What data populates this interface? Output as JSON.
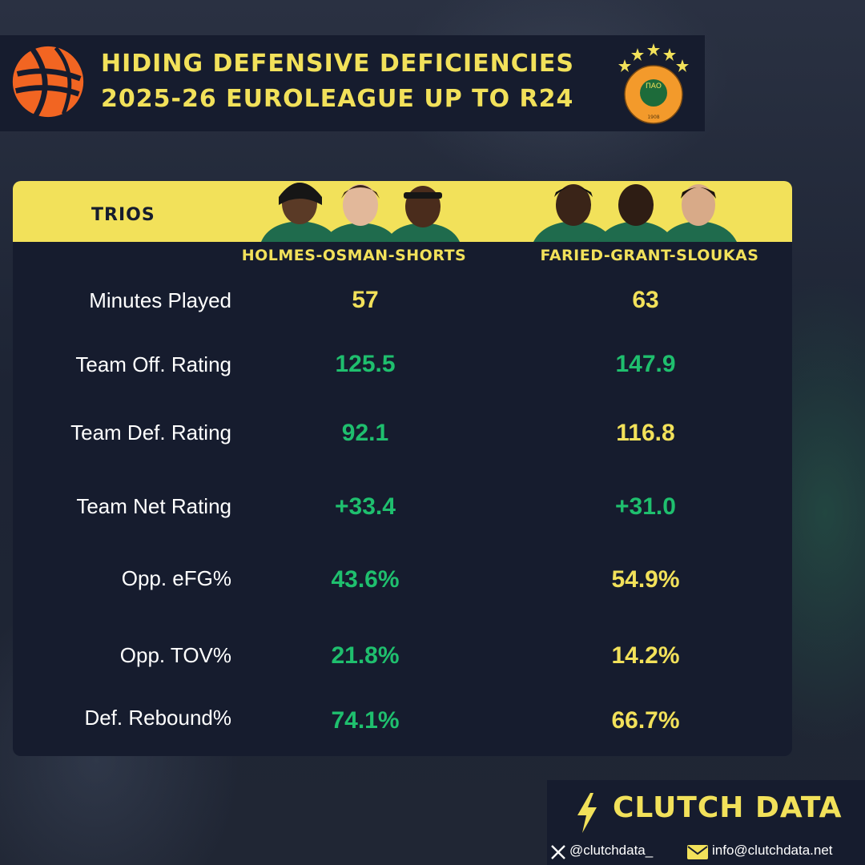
{
  "header": {
    "title_line1": "HIDING DEFENSIVE DEFICIENCIES",
    "title_line2": "2025-26 EUROLEAGUE UP TO R24",
    "club_logo_year": "1908",
    "club_logo_letters": "ΠΑΟ"
  },
  "table": {
    "section_label": "TRIOS",
    "trios": [
      {
        "name": "HOLMES-OSMAN-SHORTS"
      },
      {
        "name": "FARIED-GRANT-SLOUKAS"
      }
    ],
    "rows": [
      {
        "label": "Minutes Played",
        "v1": "57",
        "v2": "63",
        "c1": "yellow",
        "c2": "yellow"
      },
      {
        "label": "Team Off. Rating",
        "v1": "125.5",
        "v2": "147.9",
        "c1": "green",
        "c2": "green"
      },
      {
        "label": "Team Def. Rating",
        "v1": "92.1",
        "v2": "116.8",
        "c1": "green",
        "c2": "yellow"
      },
      {
        "label": "Team Net Rating",
        "v1": "+33.4",
        "v2": "+31.0",
        "c1": "green",
        "c2": "green"
      },
      {
        "label": "Opp. eFG%",
        "v1": "43.6%",
        "v2": "54.9%",
        "c1": "green",
        "c2": "yellow"
      },
      {
        "label": "Opp. TOV%",
        "v1": "21.8%",
        "v2": "14.2%",
        "c1": "green",
        "c2": "yellow"
      },
      {
        "label": "Def. Rebound%",
        "v1": "74.1%",
        "v2": "66.7%",
        "c1": "green",
        "c2": "yellow"
      }
    ]
  },
  "colors": {
    "yellow": "#f2e15a",
    "green": "#1fbf6e",
    "navy": "#161c2e",
    "orange": "#f26522"
  },
  "footer": {
    "brand": "CLUTCH DATA",
    "x_handle": "@clutchdata_",
    "email": "info@clutchdata.net"
  }
}
